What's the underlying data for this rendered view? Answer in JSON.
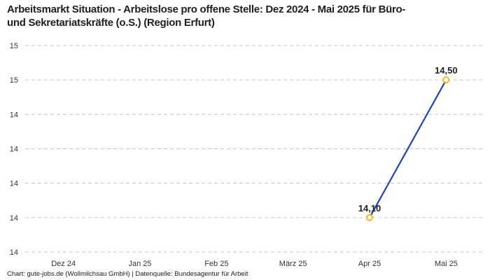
{
  "header": {
    "title_line1": "Arbeitsmarkt Situation - Arbeitslose pro offene Stelle: Dez 2024 - Mai 2025 für Büro-",
    "title_line2": "und Sekretariatskräfte (o.S.) (Region Erfurt)"
  },
  "footer": {
    "credit": "Chart: gute-jobs.de (Wollmilchsau GmbH) | Datenquelle: Bundesagentur für Arbeit"
  },
  "colors": {
    "line": "#2042b8",
    "marker_ring": "#f9b616",
    "marker_fill": "#ffffff",
    "grid": "#c6c6c6",
    "axis_text": "#333333",
    "data_label_text": "#1f1f1f",
    "title_text": "#1f1f1f"
  },
  "chart_data": {
    "type": "line",
    "title": "Arbeitsmarkt Situation - Arbeitslose pro offene Stelle: Dez 2024 - Mai 2025 für Büro- und Sekretariatskräfte (o.S.) (Region Erfurt)",
    "categories": [
      "Dez 24",
      "Jan 25",
      "Feb 25",
      "März 25",
      "Apr 25",
      "Mai 25"
    ],
    "values": [
      null,
      null,
      null,
      null,
      14.1,
      14.5
    ],
    "data_labels": [
      null,
      null,
      null,
      null,
      "14,10",
      "14,50"
    ],
    "xlabel": "",
    "ylabel": "",
    "ylim": [
      14.0,
      14.6
    ],
    "yticks": [
      {
        "value": 14.6,
        "label": "15"
      },
      {
        "value": 14.5,
        "label": "15"
      },
      {
        "value": 14.4,
        "label": "14"
      },
      {
        "value": 14.3,
        "label": "14"
      },
      {
        "value": 14.2,
        "label": "14"
      },
      {
        "value": 14.1,
        "label": "14"
      },
      {
        "value": 14.0,
        "label": "14"
      }
    ],
    "grid": "horizontal-dashed",
    "legend": "none"
  }
}
